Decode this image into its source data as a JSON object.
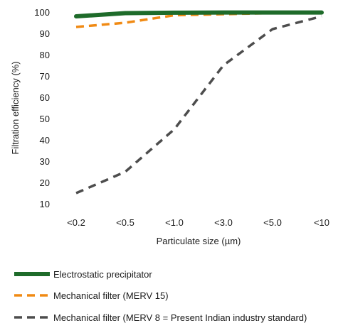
{
  "chart_data": {
    "type": "line",
    "title": "",
    "xlabel": "Particulate size (µm)",
    "ylabel": "Filtration efficiency (%)",
    "categories": [
      "<0.2",
      "<0.5",
      "<1.0",
      "<3.0",
      "<5.0",
      "<10"
    ],
    "ylim": [
      10,
      100
    ],
    "yticks": [
      10,
      20,
      30,
      40,
      50,
      60,
      70,
      80,
      90,
      100
    ],
    "grid": false,
    "legend_position": "bottom",
    "series": [
      {
        "name": "Electrostatic precipitator",
        "values": [
          98,
          99.5,
          99.7,
          99.8,
          99.8,
          99.8
        ],
        "color": "#1e6b2a",
        "style": "solid"
      },
      {
        "name": "Mechanical filter (MERV 15)",
        "values": [
          93,
          95,
          98.5,
          99,
          99.5,
          99.8
        ],
        "color": "#f08a14",
        "style": "dashed"
      },
      {
        "name": "Mechanical filter (MERV 8 = Present Indian industry standard)",
        "values": [
          15,
          25,
          45,
          75,
          92,
          98
        ],
        "color": "#4d4d4d",
        "style": "dashed"
      }
    ]
  }
}
